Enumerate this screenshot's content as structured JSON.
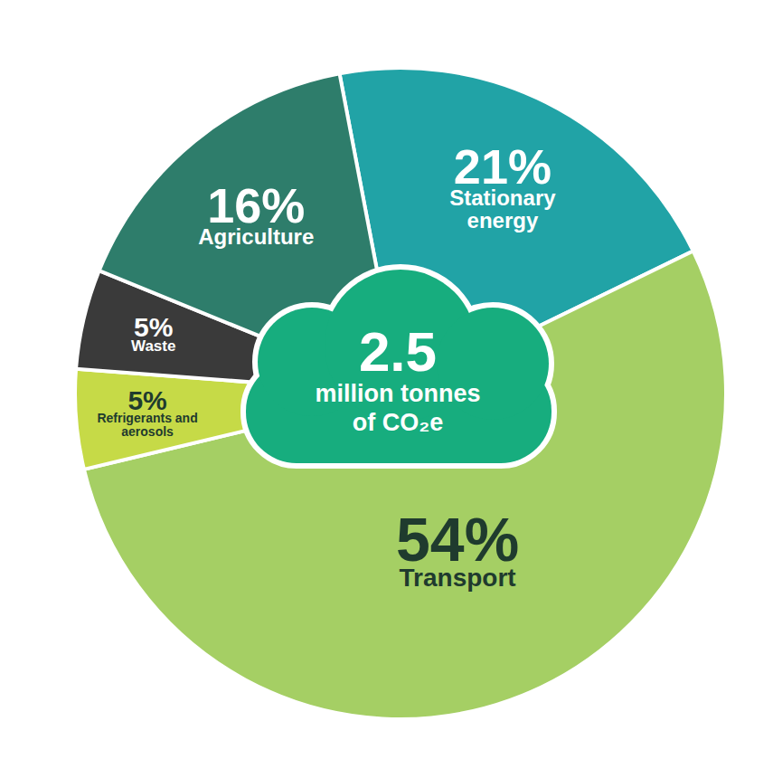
{
  "chart_data": {
    "type": "pie",
    "categories": [
      "Stationary energy",
      "Transport",
      "Refrigerants and aerosols",
      "Waste",
      "Agriculture"
    ],
    "values": [
      21,
      54,
      5,
      5,
      16
    ],
    "value_labels": [
      "21%",
      "54%",
      "5%",
      "5%",
      "16%"
    ],
    "colors": [
      "#21a3a6",
      "#a5cf64",
      "#c6da47",
      "#3a3a3a",
      "#2e7d6b"
    ],
    "data_labels": true,
    "center": {
      "value": 2.5,
      "lines": [
        "million tonnes",
        "of CO₂e"
      ]
    }
  }
}
